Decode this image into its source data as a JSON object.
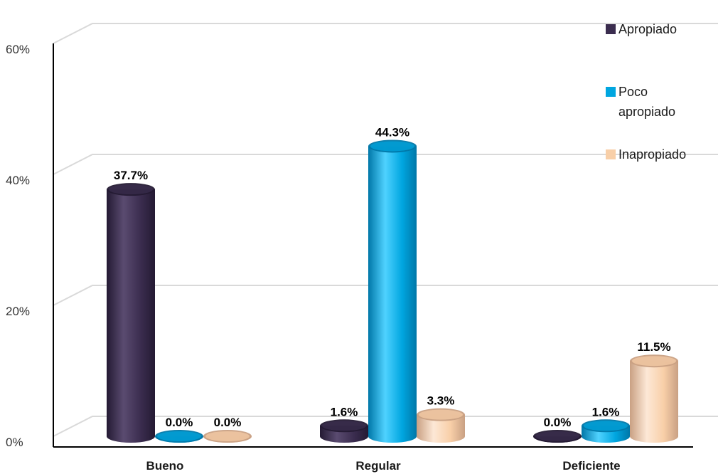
{
  "chart_data": {
    "type": "bar",
    "categories": [
      "Bueno",
      "Regular",
      "Deficiente"
    ],
    "series": [
      {
        "name": "Apropiado",
        "values": [
          37.7,
          1.6,
          0.0
        ],
        "labels": [
          "37.7%",
          "1.6%",
          "0.0%"
        ]
      },
      {
        "name": "Poco apropiado",
        "values": [
          0.0,
          44.3,
          1.6
        ],
        "labels": [
          "0.0%",
          "44.3%",
          "1.6%"
        ]
      },
      {
        "name": "Inapropiado",
        "values": [
          0.0,
          3.3,
          11.5
        ],
        "labels": [
          "0.0%",
          "3.3%",
          "11.5%"
        ]
      }
    ],
    "y_ticks": [
      {
        "value": 0,
        "label": "0%"
      },
      {
        "value": 20,
        "label": "20%"
      },
      {
        "value": 40,
        "label": "40%"
      },
      {
        "value": 60,
        "label": "60%"
      }
    ],
    "ylim": [
      0,
      60
    ],
    "grid": true,
    "legend_position": "top-right",
    "style": "3d-cylinder",
    "colors": {
      "series": [
        "#3b2d4f",
        "#00a6e0",
        "#f8cfa8"
      ],
      "series_dark": [
        "#241a33",
        "#0077a8",
        "#c9a083"
      ],
      "series_light": [
        "#5a4b70",
        "#4fd2ff",
        "#fde8d6"
      ],
      "grid": "#d9d9d9",
      "axis": "#000000"
    }
  }
}
